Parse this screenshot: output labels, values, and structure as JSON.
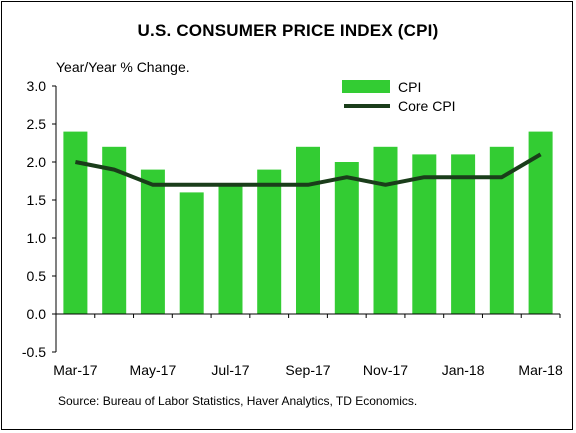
{
  "title": "U.S. CONSUMER PRICE INDEX (CPI)",
  "source": "Source: Bureau of Labor Statistics, Haver Analytics, TD Economics.",
  "colors": {
    "cpi_bar": "#33cc33",
    "core_line": "#1a3d1a"
  },
  "chart_data": {
    "type": "bar",
    "title": "U.S. CONSUMER PRICE INDEX (CPI)",
    "ylabel": "Year/Year % Change.",
    "xlabel": "",
    "ylim": [
      -0.5,
      3.0
    ],
    "yticks": [
      "3.0",
      "2.5",
      "2.0",
      "1.5",
      "1.0",
      "0.5",
      "0.0",
      "-0.5"
    ],
    "grid": false,
    "legend": "top-center",
    "categories": [
      "Mar-17",
      "Apr-17",
      "May-17",
      "Jun-17",
      "Jul-17",
      "Aug-17",
      "Sep-17",
      "Oct-17",
      "Nov-17",
      "Dec-17",
      "Jan-18",
      "Feb-18",
      "Mar-18"
    ],
    "xtick_labels": [
      "Mar-17",
      "May-17",
      "Jul-17",
      "Sep-17",
      "Nov-17",
      "Jan-18",
      "Mar-18"
    ],
    "xtick_categories": [
      "Mar-17",
      "May-17",
      "Jul-17",
      "Sep-17",
      "Nov-17",
      "Jan-18",
      "Mar-18"
    ],
    "series": [
      {
        "name": "CPI",
        "type": "bar",
        "values": [
          2.4,
          2.2,
          1.9,
          1.6,
          1.7,
          1.9,
          2.2,
          2.0,
          2.2,
          2.1,
          2.1,
          2.2,
          2.4
        ]
      },
      {
        "name": "Core CPI",
        "type": "line",
        "values": [
          2.0,
          1.9,
          1.7,
          1.7,
          1.7,
          1.7,
          1.7,
          1.8,
          1.7,
          1.8,
          1.8,
          1.8,
          2.1
        ]
      }
    ]
  }
}
